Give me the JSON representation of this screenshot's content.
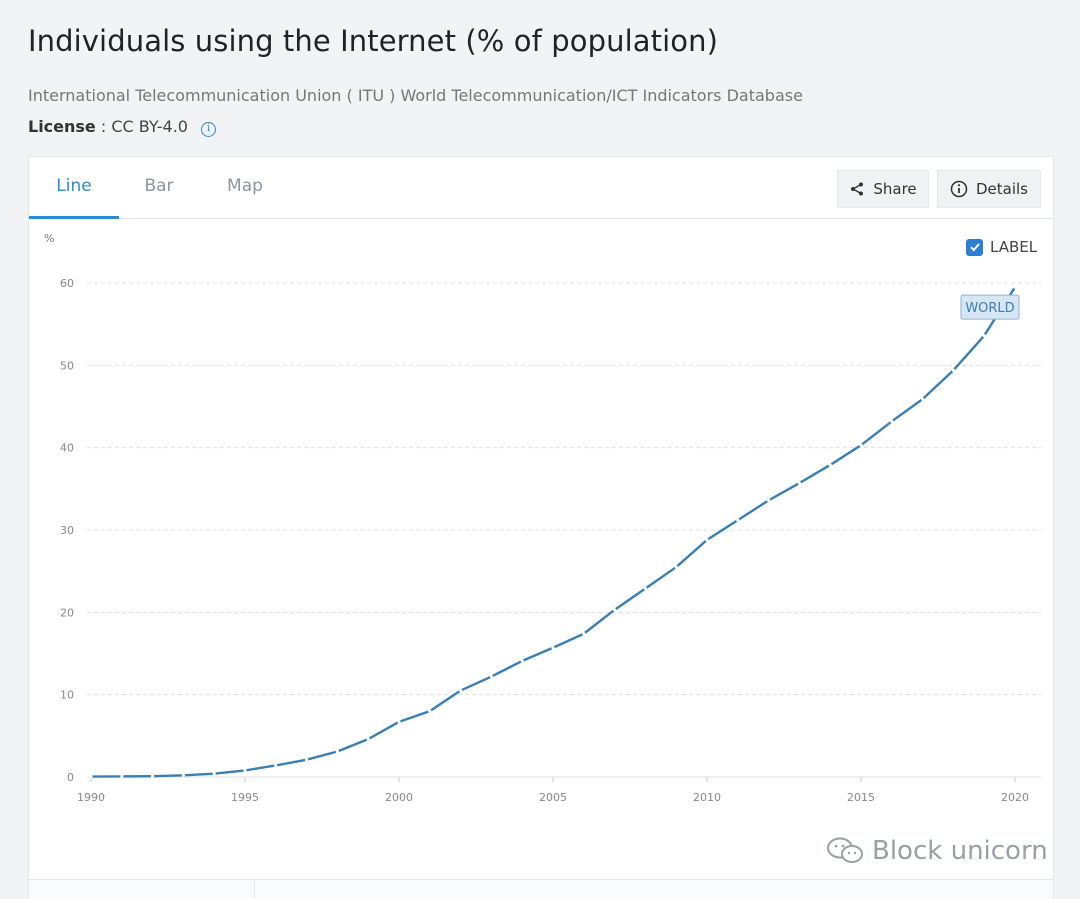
{
  "page": {
    "title": "Individuals using the Internet (% of population)",
    "source": "International Telecommunication Union ( ITU ) World Telecommunication/ICT Indicators Database",
    "license_label": "License",
    "license_value": ": CC BY-4.0"
  },
  "tabs": [
    {
      "label": "Line",
      "active": true
    },
    {
      "label": "Bar",
      "active": false
    },
    {
      "label": "Map",
      "active": false
    }
  ],
  "actions": {
    "share_label": "Share",
    "details_label": "Details"
  },
  "label_toggle": {
    "label": "LABEL",
    "checked": true
  },
  "watermark": {
    "text": "Block unicorn"
  },
  "colors": {
    "line": "#3a7fb3",
    "accent": "#2a8bd0",
    "series_label_bg": "#d6e6f3"
  },
  "chart_data": {
    "type": "line",
    "title": "",
    "xlabel": "",
    "ylabel": "%",
    "xlim": [
      1990,
      2020
    ],
    "ylim": [
      0,
      60
    ],
    "yticks": [
      "0",
      "10",
      "20",
      "30",
      "40",
      "50",
      "60"
    ],
    "xticks": [
      "1990",
      "1995",
      "2000",
      "2005",
      "2010",
      "2015",
      "2020"
    ],
    "grid": true,
    "series": [
      {
        "name": "WORLD",
        "x": [
          1990,
          1991,
          1992,
          1993,
          1994,
          1995,
          1996,
          1997,
          1998,
          1999,
          2000,
          2001,
          2002,
          2003,
          2004,
          2005,
          2006,
          2007,
          2008,
          2009,
          2010,
          2011,
          2012,
          2013,
          2014,
          2015,
          2016,
          2017,
          2018,
          2019,
          2020
        ],
        "values": [
          0.05,
          0.07,
          0.1,
          0.2,
          0.4,
          0.8,
          1.4,
          2.1,
          3.1,
          4.6,
          6.7,
          8.0,
          10.5,
          12.2,
          14.1,
          15.7,
          17.4,
          20.3,
          22.9,
          25.5,
          28.8,
          31.2,
          33.6,
          35.7,
          37.9,
          40.3,
          43.2,
          45.9,
          49.4,
          53.6,
          59.5
        ]
      }
    ]
  }
}
